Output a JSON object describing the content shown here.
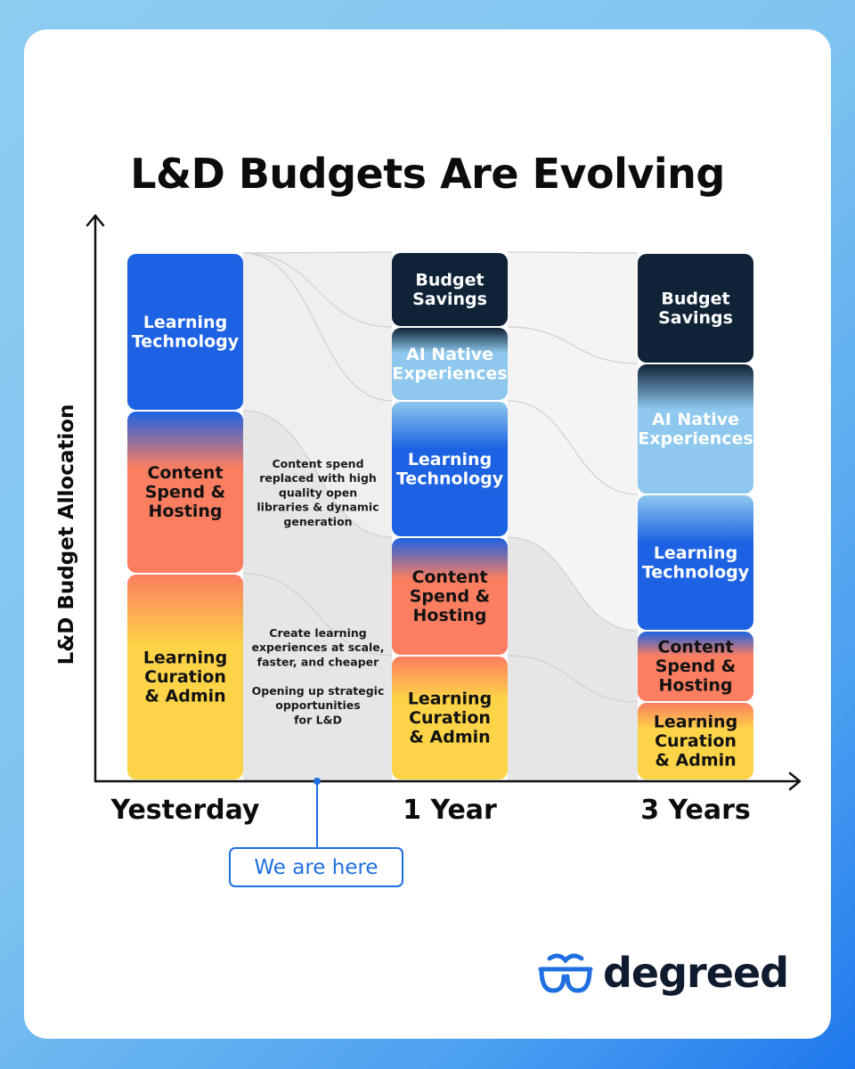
{
  "title": "L&D Budgets Are Evolving",
  "colors": {
    "budget_savings": "#0f2236",
    "ai_native": "#8ec8ee",
    "learning_technology": "#1d62e3",
    "content_spend": "#fb7e61",
    "curation_admin": "#fdd447",
    "accent": "#1f6fe0"
  },
  "chart_data": {
    "type": "bar",
    "stacked": true,
    "title": "L&D Budgets Are Evolving",
    "xlabel": "",
    "ylabel": "L&D Budget Allocation",
    "categories": [
      "Yesterday",
      "1 Year",
      "3 Years"
    ],
    "series": [
      {
        "name": "Learning Curation & Admin",
        "label_lines": [
          "Learning",
          "Curation",
          "& Admin"
        ],
        "color_key": "curation_admin",
        "values": [
          232,
          140,
          88
        ]
      },
      {
        "name": "Content Spend & Hosting",
        "label_lines": [
          "Content",
          "Spend &",
          "Hosting"
        ],
        "color_key": "content_spend",
        "values": [
          183,
          133,
          80
        ]
      },
      {
        "name": "Learning Technology",
        "label_lines": [
          "Learning",
          "Technology"
        ],
        "color_key": "learning_technology",
        "values": [
          177,
          153,
          153
        ]
      },
      {
        "name": "AI Native Experiences",
        "label_lines": [
          "AI Native",
          "Experiences"
        ],
        "color_key": "ai_native",
        "values": [
          0,
          83,
          147
        ]
      },
      {
        "name": "Budget Savings",
        "label_lines": [
          "Budget",
          "Savings"
        ],
        "color_key": "budget_savings",
        "values": [
          0,
          84,
          124
        ]
      }
    ],
    "ylim": [
      0,
      592
    ],
    "annotations": [
      {
        "lines": [
          "Content spend",
          "replaced with high",
          "quality open",
          "libraries & dynamic",
          "generation"
        ]
      },
      {
        "lines": [
          "Create learning",
          "experiences at scale,",
          "faster, and cheaper"
        ]
      },
      {
        "lines": [
          "Opening up strategic",
          "opportunities",
          "for L&D"
        ]
      }
    ],
    "marker": {
      "label": "We are here"
    }
  },
  "brand": {
    "name": "degreed",
    "icon": "glasses-icon"
  }
}
